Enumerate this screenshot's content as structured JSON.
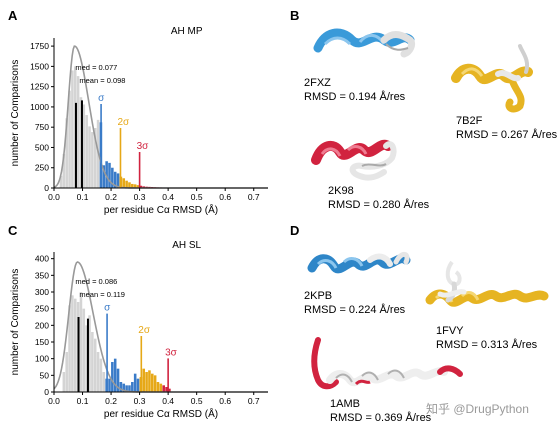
{
  "panels": {
    "A": "A",
    "B": "B",
    "C": "C",
    "D": "D"
  },
  "chart_data": [
    {
      "type": "bar",
      "title": "AH MP",
      "xlabel": "per residue Cα RMSD (Å)",
      "ylabel": "number of Comparisons",
      "xlim": [
        0.0,
        0.75
      ],
      "ylim": [
        0,
        1850
      ],
      "xticks": [
        "0.0",
        "0.1",
        "0.2",
        "0.3",
        "0.4",
        "0.5",
        "0.6",
        "0.7"
      ],
      "yticks": [
        "0",
        "250",
        "500",
        "750",
        "1000",
        "1250",
        "1500",
        "1750"
      ],
      "bin_width": 0.01,
      "bins_start": 0.02,
      "values": [
        150,
        420,
        860,
        1200,
        1450,
        1500,
        1380,
        1120,
        1030,
        900,
        760,
        690,
        740,
        840,
        810,
        280,
        330,
        310,
        250,
        200,
        180,
        140,
        120,
        90,
        70,
        50,
        45,
        35,
        28,
        20,
        16,
        14,
        12,
        10,
        8,
        7,
        6,
        5,
        4,
        4,
        3,
        3,
        2,
        2,
        2,
        1,
        1,
        1
      ],
      "bin_colors": {
        "0.16": "#3a7bc8",
        "0.23": "#e6a817",
        "0.30": "#d1233f"
      },
      "fit_curve": {
        "peak_x": 0.072,
        "peak_y": 1750,
        "sigma_left": 0.022,
        "sigma_right": 0.05,
        "color": "#999999"
      },
      "lines": [
        {
          "x": 0.077,
          "label": "med = 0.077",
          "ymax": 1050
        },
        {
          "x": 0.098,
          "label": "mean = 0.098",
          "ymax": 1080
        }
      ],
      "sigma_markers": [
        {
          "label": "σ",
          "x": 0.165,
          "color": "#3a7bc8"
        },
        {
          "label": "2σ",
          "x": 0.233,
          "color": "#e6a817"
        },
        {
          "label": "3σ",
          "x": 0.3,
          "color": "#d1233f"
        }
      ]
    },
    {
      "type": "bar",
      "title": "AH SL",
      "xlabel": "per residue Cα RMSD (Å)",
      "ylabel": "number of Comparisons",
      "xlim": [
        0.0,
        0.75
      ],
      "ylim": [
        0,
        420
      ],
      "xticks": [
        "0.0",
        "0.1",
        "0.2",
        "0.3",
        "0.4",
        "0.5",
        "0.6",
        "0.7"
      ],
      "yticks": [
        "0",
        "50",
        "100",
        "150",
        "200",
        "250",
        "300",
        "350",
        "400"
      ],
      "bin_width": 0.01,
      "bins_start": 0.03,
      "values": [
        60,
        120,
        260,
        290,
        280,
        270,
        300,
        250,
        200,
        230,
        180,
        160,
        120,
        100,
        60,
        40,
        40,
        90,
        100,
        70,
        30,
        25,
        20,
        20,
        30,
        55,
        40,
        45,
        70,
        60,
        65,
        55,
        50,
        30,
        25,
        20,
        15,
        10
      ],
      "bin_colors": {
        "0.18": "#3a7bc8",
        "0.30": "#e6a817",
        "0.38": "#d1233f"
      },
      "fit_curve": {
        "peak_x": 0.082,
        "peak_y": 390,
        "sigma_left": 0.03,
        "sigma_right": 0.055,
        "color": "#999999"
      },
      "lines": [
        {
          "x": 0.086,
          "label": "med = 0.086",
          "ymax": 225
        },
        {
          "x": 0.119,
          "label": "mean = 0.119",
          "ymax": 220
        }
      ],
      "sigma_markers": [
        {
          "label": "σ",
          "x": 0.186,
          "color": "#3a7bc8"
        },
        {
          "label": "2σ",
          "x": 0.306,
          "color": "#e6a817"
        },
        {
          "label": "3σ",
          "x": 0.4,
          "color": "#d1233f"
        }
      ]
    }
  ],
  "structures_B": [
    {
      "name": "2FXZ",
      "rmsd": "RMSD = 0.194 Å/res",
      "color": "#3a9ad9"
    },
    {
      "name": "7B2F",
      "rmsd": "RMSD = 0.267 Å/res",
      "color": "#e6b422"
    },
    {
      "name": "2K98",
      "rmsd": "RMSD = 0.280 Å/res",
      "color": "#d1233f"
    }
  ],
  "structures_D": [
    {
      "name": "2KPB",
      "rmsd": "RMSD = 0.224 Å/res",
      "color": "#2e86c8"
    },
    {
      "name": "1FVY",
      "rmsd": "RMSD = 0.313 Å/res",
      "color": "#e6b422"
    },
    {
      "name": "1AMB",
      "rmsd": "RMSD = 0.369 Å/res",
      "color": "#d1233f"
    }
  ],
  "watermark": "知乎 @DrugPython"
}
